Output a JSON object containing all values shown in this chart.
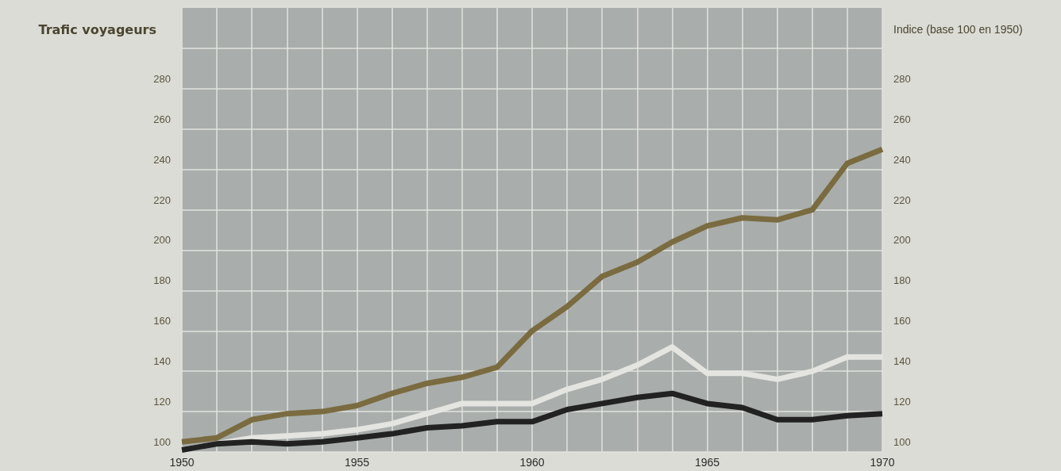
{
  "chart_data": {
    "type": "line",
    "ylabel": "Trafic voyageurs",
    "y2label": "Indice (base 100 en 1950)",
    "x": [
      1950,
      1951,
      1952,
      1953,
      1954,
      1955,
      1956,
      1957,
      1958,
      1959,
      1960,
      1961,
      1962,
      1963,
      1964,
      1965,
      1966,
      1967,
      1968,
      1969,
      1970
    ],
    "xlim": [
      1950,
      1970
    ],
    "xticks": [
      1950,
      {
        "value": 1951,
        "label": null
      },
      {
        "value": 1952,
        "label": null
      },
      {
        "value": 1953,
        "label": null
      },
      {
        "value": 1954,
        "label": null
      },
      1955,
      {
        "value": 1956,
        "label": null
      },
      {
        "value": 1957,
        "label": null
      },
      {
        "value": 1958,
        "label": null
      },
      {
        "value": 1959,
        "label": null
      },
      1960,
      {
        "value": 1961,
        "label": null
      },
      {
        "value": 1962,
        "label": null
      },
      {
        "value": 1963,
        "label": null
      },
      {
        "value": 1964,
        "label": null
      },
      1965,
      {
        "value": 1966,
        "label": null
      },
      {
        "value": 1967,
        "label": null
      },
      {
        "value": 1968,
        "label": null
      },
      {
        "value": 1969,
        "label": null
      },
      1970
    ],
    "ylim": [
      100,
      320
    ],
    "yticks": [
      100,
      120,
      140,
      160,
      180,
      200,
      220,
      240,
      260,
      280,
      {
        "value": 300,
        "label": null
      }
    ],
    "y2lim": [
      100,
      320
    ],
    "y2ticks": [
      100,
      120,
      140,
      160,
      180,
      200,
      220,
      240,
      260,
      280
    ],
    "grid": true,
    "marker": "none",
    "line_style": "solid",
    "series": [
      {
        "color": "#7a6b40",
        "values": [
          105,
          107,
          116,
          119,
          120,
          123,
          129,
          134,
          137,
          142,
          160,
          172,
          187,
          194,
          204,
          212,
          216,
          215,
          220,
          243,
          250
        ]
      },
      {
        "color": "#e4e5e0",
        "values": [
          101,
          104,
          107,
          108,
          109,
          111,
          114,
          119,
          124,
          124,
          124,
          131,
          136,
          143,
          152,
          139,
          139,
          136,
          140,
          147,
          147
        ]
      },
      {
        "color": "#222222",
        "values": [
          101,
          104,
          105,
          104,
          105,
          107,
          109,
          112,
          113,
          115,
          115,
          121,
          124,
          127,
          129,
          124,
          122,
          116,
          116,
          118,
          119
        ]
      }
    ]
  }
}
